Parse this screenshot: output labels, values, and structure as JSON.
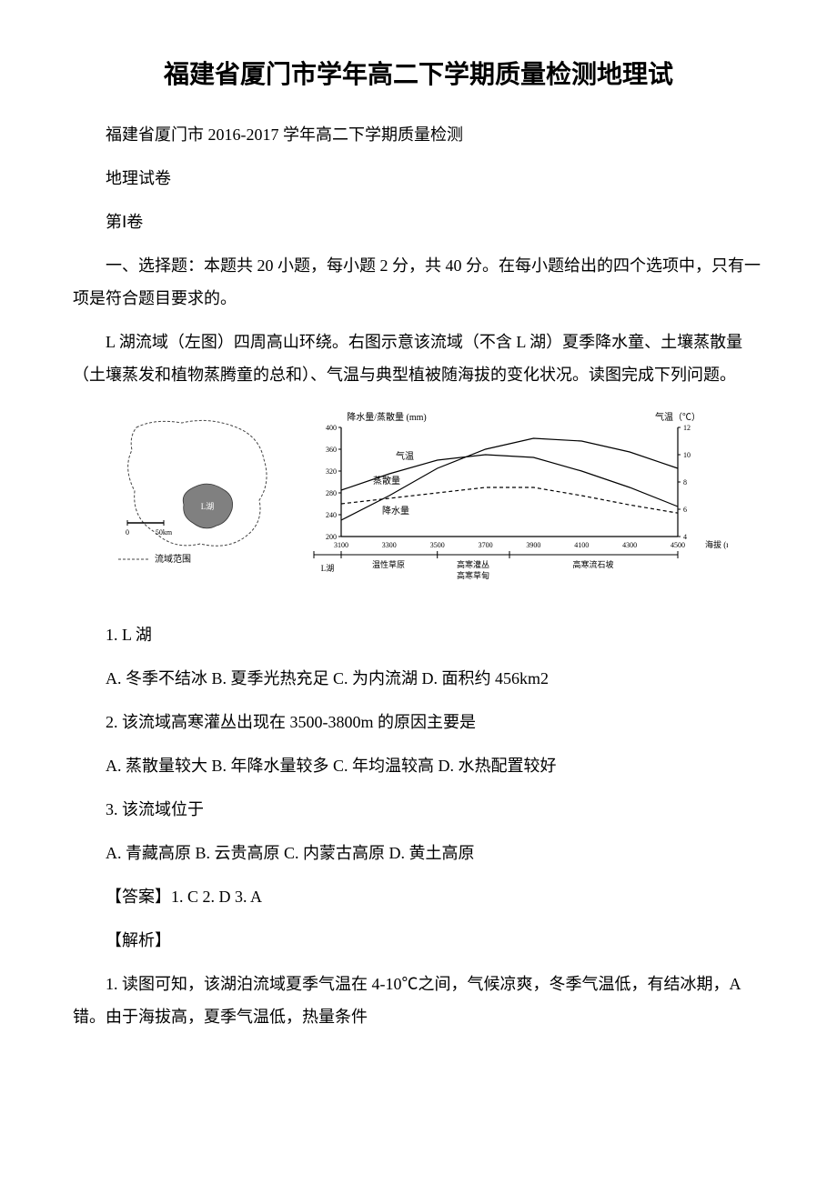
{
  "title": "福建省厦门市学年高二下学期质量检测地理试",
  "subtitle": "福建省厦门市 2016-2017 学年高二下学期质量检测",
  "paper_name": "地理试卷",
  "section": "第Ⅰ卷",
  "instructions": "一、选择题：本题共 20 小题，每小题 2 分，共 40 分。在每小题给出的四个选项中，只有一项是符合题目要求的。",
  "passage": "L 湖流域（左图）四周高山环绕。右图示意该流域（不含 L 湖）夏季降水童、土壤蒸散量（土壤蒸发和植物蒸腾童的总和）、气温与典型植被随海拔的变化状况。读图完成下列问题。",
  "q1": "1. L 湖",
  "q1_options": "A. 冬季不结冰 B. 夏季光热充足 C. 为内流湖 D. 面积约 456km2",
  "q2": "2. 该流域高寒灌丛出现在 3500-3800m 的原因主要是",
  "q2_options": "A. 蒸散量较大 B. 年降水量较多 C. 年均温较高 D. 水热配置较好",
  "q3": "3. 该流域位于",
  "q3_options": "A. 青藏高原 B. 云贵高原 C. 内蒙古高原 D. 黄土高原",
  "answers": "【答案】1. C  2. D  3. A",
  "explain_label": "【解析】",
  "explain_1": "1. 读图可知，该湖泊流域夏季气温在 4-10℃之间，气候凉爽，冬季气温低，有结冰期，A 错。由于海拔高，夏季气温低，热量条件",
  "map": {
    "lake_label": "L湖",
    "boundary_label": "流域范围",
    "scale_label": "50km",
    "scale_zero": "0",
    "lake_fill": "#808080",
    "boundary_stroke": "#444444"
  },
  "chart": {
    "left_y_label": "降水量/蒸散量 (mm)",
    "right_y_label": "气温（℃）",
    "x_label": "海拔 (m)",
    "left_ylim": [
      200,
      400
    ],
    "left_ytick_step": 40,
    "right_ylim": [
      4,
      12
    ],
    "right_ytick_step": 2,
    "xlim": [
      3100,
      4500
    ],
    "xtick_step": 200,
    "curve_temp_label": "气温",
    "curve_evap_label": "蒸散量",
    "curve_precip_label": "降水量",
    "lake_below_label": "L湖",
    "veg1": "温性草原",
    "veg2": "高寒灌丛",
    "veg2b": "高寒草甸",
    "veg3": "高寒流石坡",
    "line_color": "#000000",
    "temp_curve": [
      [
        3100,
        5.2
      ],
      [
        3300,
        7.0
      ],
      [
        3500,
        9.0
      ],
      [
        3700,
        10.4
      ],
      [
        3900,
        11.2
      ],
      [
        4100,
        11.0
      ],
      [
        4300,
        10.2
      ],
      [
        4500,
        9.0
      ]
    ],
    "evap_curve": [
      [
        3100,
        285
      ],
      [
        3300,
        315
      ],
      [
        3500,
        340
      ],
      [
        3700,
        350
      ],
      [
        3900,
        345
      ],
      [
        4100,
        320
      ],
      [
        4300,
        290
      ],
      [
        4500,
        255
      ]
    ],
    "precip_curve": [
      [
        3100,
        260
      ],
      [
        3300,
        270
      ],
      [
        3500,
        280
      ],
      [
        3700,
        290
      ],
      [
        3900,
        290
      ],
      [
        4100,
        275
      ],
      [
        4300,
        258
      ],
      [
        4500,
        243
      ]
    ]
  }
}
